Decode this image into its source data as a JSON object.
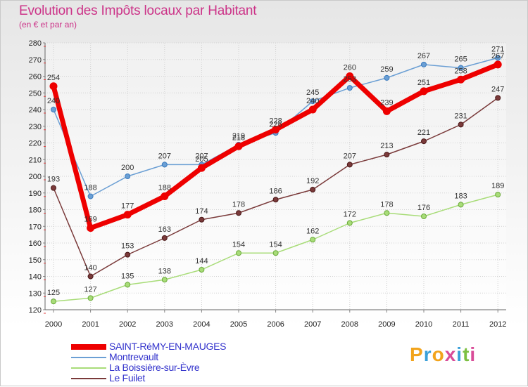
{
  "header": {
    "title": "Evolution des Impôts locaux par Habitant",
    "subtitle": "(en € et par an)"
  },
  "logo": {
    "letters": [
      "P",
      "r",
      "o",
      "x",
      "i",
      "t",
      "i"
    ],
    "colors": [
      "#f2a41c",
      "#3aa0d8",
      "#f2a41c",
      "#d94c98",
      "#3aa0d8",
      "#7cc042",
      "#d94c98"
    ]
  },
  "chart_data": {
    "type": "line",
    "x": [
      2000,
      2001,
      2002,
      2003,
      2004,
      2005,
      2006,
      2007,
      2008,
      2009,
      2010,
      2011,
      2012
    ],
    "ylim": [
      120,
      280
    ],
    "yticks": [
      120,
      130,
      140,
      150,
      160,
      170,
      180,
      190,
      200,
      210,
      220,
      230,
      240,
      250,
      260,
      270,
      280
    ],
    "grid": true,
    "series": [
      {
        "name": "SAINT-RéMY-EN-MAUGES",
        "color": "#ee0000",
        "values": [
          254,
          169,
          177,
          188,
          205,
          218,
          228,
          240,
          260,
          239,
          251,
          258,
          267
        ]
      },
      {
        "name": "Montrevault",
        "color": "#6b9fd4",
        "values": [
          240,
          188,
          200,
          207,
          207,
          219,
          226,
          245,
          253,
          259,
          267,
          265,
          271
        ]
      },
      {
        "name": "La Boissière-sur-Èvre",
        "color": "#a8dc78",
        "values": [
          125,
          127,
          135,
          138,
          144,
          154,
          154,
          162,
          172,
          178,
          176,
          183,
          189
        ]
      },
      {
        "name": "Le Fuilet",
        "color": "#7a3a3a",
        "values": [
          193,
          140,
          153,
          163,
          174,
          178,
          186,
          192,
          207,
          213,
          221,
          231,
          247
        ]
      }
    ]
  }
}
